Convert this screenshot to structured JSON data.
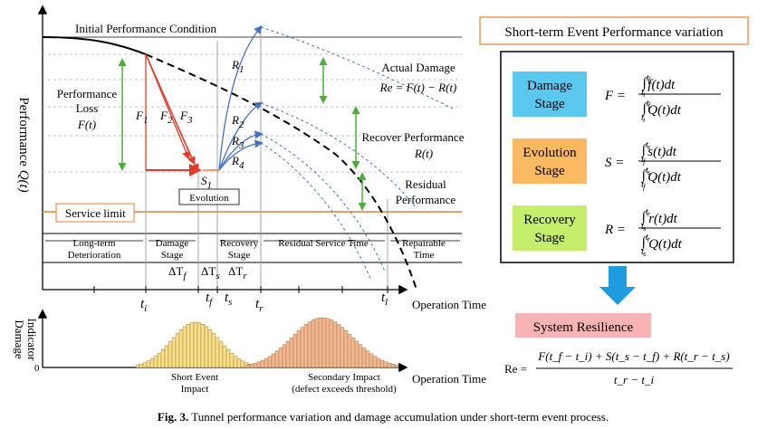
{
  "main": {
    "initial_condition": "Initial Performance Condition",
    "y_axis_label": "Performance",
    "y_axis_symbol": "Q(t)",
    "x_axis_label": "Operation Time",
    "perf_loss_title": [
      "Performance",
      "Loss"
    ],
    "perf_loss_symbol": "F(t)",
    "f_labels": [
      "F",
      "F",
      "F"
    ],
    "f_subs": [
      "1",
      "2",
      "3"
    ],
    "r_labels": [
      "R",
      "R",
      "R",
      "R"
    ],
    "r_subs": [
      "1",
      "2",
      "3",
      "4"
    ],
    "s1": "S",
    "s1_sub": "1",
    "evolution_box": "Evolution",
    "service_limit": "Service limit",
    "actual_damage": "Actual Damage",
    "actual_damage_eq": "Re = F(t) − R(t)",
    "recover_perf": "Recover Performance",
    "recover_symbol": "R(t)",
    "residual_perf": [
      "Residual",
      "Performance"
    ],
    "phases": [
      {
        "line1": "Long-term",
        "line2": "Deterioration",
        "delta": ""
      },
      {
        "line1": "Damage",
        "line2": "Stage",
        "delta": "ΔT",
        "delta_sub": "f"
      },
      {
        "line1": "",
        "line2": "",
        "delta": "ΔT",
        "delta_sub": "s"
      },
      {
        "line1": "Recovery",
        "line2": "Stage",
        "delta": "ΔT",
        "delta_sub": "r"
      },
      {
        "line1": "Residual Service Time",
        "line2": "",
        "delta": ""
      },
      {
        "line1": "Repairable",
        "line2": "Time",
        "delta": ""
      }
    ],
    "time_ticks": [
      {
        "t": "t",
        "sub": "i"
      },
      {
        "t": "t",
        "sub": "f"
      },
      {
        "t": "t",
        "sub": "s"
      },
      {
        "t": "t",
        "sub": "r"
      },
      {
        "t": "t",
        "sub": "l"
      }
    ]
  },
  "damage_panel": {
    "y_label": [
      "Damage",
      "Indicator"
    ],
    "zero": "0",
    "x_label": "Operation Time",
    "short_event": [
      "Short Event",
      "Impact"
    ],
    "secondary": [
      "Secondary Impact",
      "(defect exceeds threshold)"
    ]
  },
  "right_panel": {
    "title": "Short-term Event Performance variation",
    "stages": [
      {
        "name": [
          "Damage",
          "Stage"
        ],
        "symbol": "F",
        "color": "#5bc8f0",
        "num_fn": "f(t)dt",
        "lo": "i",
        "hi": "f"
      },
      {
        "name": [
          "Evolution",
          "Stage"
        ],
        "symbol": "S",
        "color": "#fbb961",
        "num_fn": "s(t)dt",
        "lo": "f",
        "hi": "s"
      },
      {
        "name": [
          "Recovery",
          "Stage"
        ],
        "symbol": "R",
        "color": "#c4ee6c",
        "num_fn": "r(t)dt",
        "lo": "s",
        "hi": "r"
      }
    ],
    "den_fn": "Q(t)dt",
    "resilience_title": "System Resilience",
    "resilience_lhs": "Re =",
    "resilience_num": "F(t_f − t_i) + S(t_s − t_f) + R(t_r − t_s)",
    "resilience_den": "t_r − t_i",
    "colors": {
      "title_border": "#ed7d31",
      "resilience_bg": "#f8b4b4",
      "arrow": "#1f9be0"
    }
  },
  "caption": {
    "bold": "Fig. 3.",
    "text": " Tunnel performance variation and damage accumulation under short-term event process."
  }
}
